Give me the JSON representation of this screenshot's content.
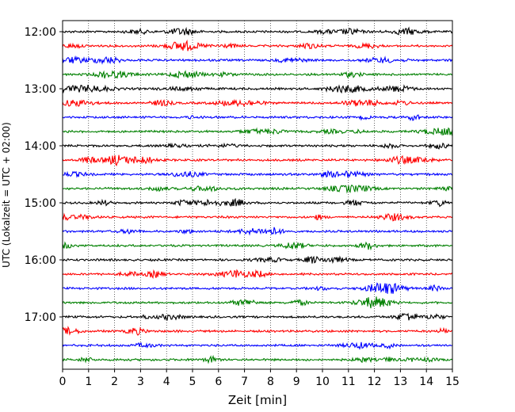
{
  "chart_data": {
    "type": "line",
    "xlabel": "Zeit  [min]",
    "ylabel": "UTC (Lokalzeit = UTC + 02:00)",
    "xlim": [
      0,
      15
    ],
    "x_ticks": [
      "0",
      "1",
      "2",
      "3",
      "4",
      "5",
      "6",
      "7",
      "8",
      "9",
      "10",
      "11",
      "12",
      "13",
      "14",
      "15"
    ],
    "y_ticks": [
      "12:00",
      "13:00",
      "14:00",
      "15:00",
      "16:00",
      "17:00"
    ],
    "grid": "vertical dotted",
    "trace_colors": [
      "#000000",
      "#ff0000",
      "#0000ff",
      "#008000"
    ],
    "traces": [
      {
        "start": "12:00",
        "color": "#000000"
      },
      {
        "start": "12:15",
        "color": "#ff0000"
      },
      {
        "start": "12:30",
        "color": "#0000ff"
      },
      {
        "start": "12:45",
        "color": "#008000"
      },
      {
        "start": "13:00",
        "color": "#000000"
      },
      {
        "start": "13:15",
        "color": "#ff0000"
      },
      {
        "start": "13:30",
        "color": "#0000ff"
      },
      {
        "start": "13:45",
        "color": "#008000"
      },
      {
        "start": "14:00",
        "color": "#000000"
      },
      {
        "start": "14:15",
        "color": "#ff0000"
      },
      {
        "start": "14:30",
        "color": "#0000ff"
      },
      {
        "start": "14:45",
        "color": "#008000"
      },
      {
        "start": "15:00",
        "color": "#000000"
      },
      {
        "start": "15:15",
        "color": "#ff0000"
      },
      {
        "start": "15:30",
        "color": "#0000ff"
      },
      {
        "start": "15:45",
        "color": "#008000"
      },
      {
        "start": "16:00",
        "color": "#000000"
      },
      {
        "start": "16:15",
        "color": "#ff0000"
      },
      {
        "start": "16:30",
        "color": "#0000ff"
      },
      {
        "start": "16:45",
        "color": "#008000"
      },
      {
        "start": "17:00",
        "color": "#000000"
      },
      {
        "start": "17:15",
        "color": "#ff0000"
      },
      {
        "start": "17:30",
        "color": "#0000ff"
      },
      {
        "start": "17:45",
        "color": "#008000"
      }
    ]
  }
}
